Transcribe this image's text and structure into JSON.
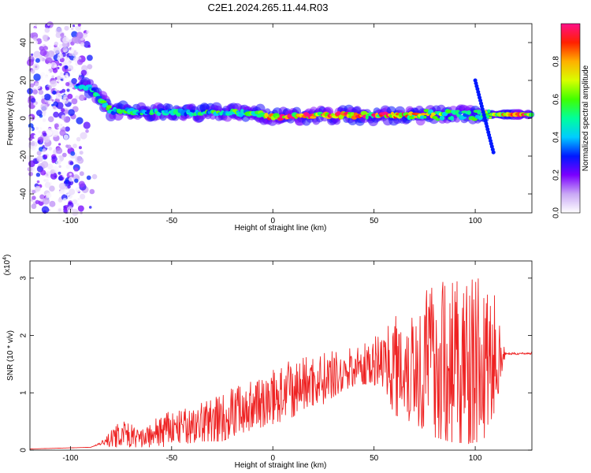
{
  "title": "C2E1.2024.265.11.44.R03",
  "chart_data": [
    {
      "type": "heatmap",
      "panel": "top",
      "xlabel": "Height of straight line (km)",
      "ylabel": "Frequency (Hz)",
      "xlim": [
        -120,
        128
      ],
      "ylim": [
        -50,
        50
      ],
      "xticks": [
        -100,
        -50,
        0,
        50,
        100
      ],
      "yticks": [
        -40,
        -20,
        0,
        20,
        40
      ],
      "colorbar": {
        "label": "Normalized spectral amplitude",
        "range": [
          0.0,
          1.0
        ],
        "ticks": [
          "0.0",
          "0.2",
          "0.4",
          "0.6",
          "0.8"
        ],
        "colors": [
          "#ffffff",
          "#c9a8f5",
          "#7b00ff",
          "#0018ff",
          "#00ccff",
          "#00ff9c",
          "#40ff00",
          "#d8ff00",
          "#ffb000",
          "#ff2000",
          "#ff0f88"
        ]
      },
      "ridge": {
        "description_points_x": [
          -100,
          -90,
          -80,
          -60,
          -40,
          -20,
          -5,
          0,
          20,
          50,
          70,
          90,
          108,
          128
        ],
        "frequency_hz": [
          17,
          16,
          4,
          3,
          3,
          3,
          2,
          0.5,
          1.5,
          1.5,
          1.5,
          2,
          2,
          2
        ],
        "amplitude": [
          0.45,
          0.5,
          0.55,
          0.5,
          0.5,
          0.6,
          0.6,
          0.95,
          0.95,
          0.9,
          0.8,
          0.55,
          0.7,
          1.0
        ]
      },
      "noise_region_x": [
        -120,
        -88
      ]
    },
    {
      "type": "line",
      "panel": "bottom",
      "xlabel": "Height of straight line (km)",
      "ylabel": "SNR (10 * v/v)",
      "yscale_label": "(x10",
      "yscale_exp": "4",
      "yscale_close": ")",
      "xlim": [
        -120,
        128
      ],
      "ylim": [
        0,
        3.3
      ],
      "xticks": [
        -100,
        -50,
        0,
        50,
        100
      ],
      "yticks": [
        0,
        1,
        2,
        3
      ],
      "color": "#ee2222",
      "envelope": {
        "x": [
          -120,
          -100,
          -90,
          -85,
          -80,
          -75,
          -65,
          -55,
          -45,
          -35,
          -25,
          -15,
          -5,
          5,
          15,
          25,
          35,
          45,
          55,
          60,
          70,
          80,
          90,
          100,
          105,
          110,
          115,
          128
        ],
        "mean": [
          0.02,
          0.04,
          0.05,
          0.12,
          0.2,
          0.3,
          0.2,
          0.35,
          0.4,
          0.5,
          0.6,
          0.75,
          0.85,
          1.0,
          1.15,
          1.25,
          1.4,
          1.5,
          1.6,
          1.5,
          1.55,
          1.6,
          1.6,
          1.6,
          1.5,
          1.7,
          1.68,
          1.69
        ],
        "amplitude": [
          0.0,
          0.0,
          0.0,
          0.03,
          0.15,
          0.25,
          0.15,
          0.3,
          0.3,
          0.35,
          0.45,
          0.45,
          0.45,
          0.5,
          0.5,
          0.45,
          0.35,
          0.35,
          0.5,
          0.9,
          1.1,
          1.4,
          1.5,
          1.5,
          1.3,
          1.0,
          0.02,
          0.02
        ]
      }
    }
  ]
}
